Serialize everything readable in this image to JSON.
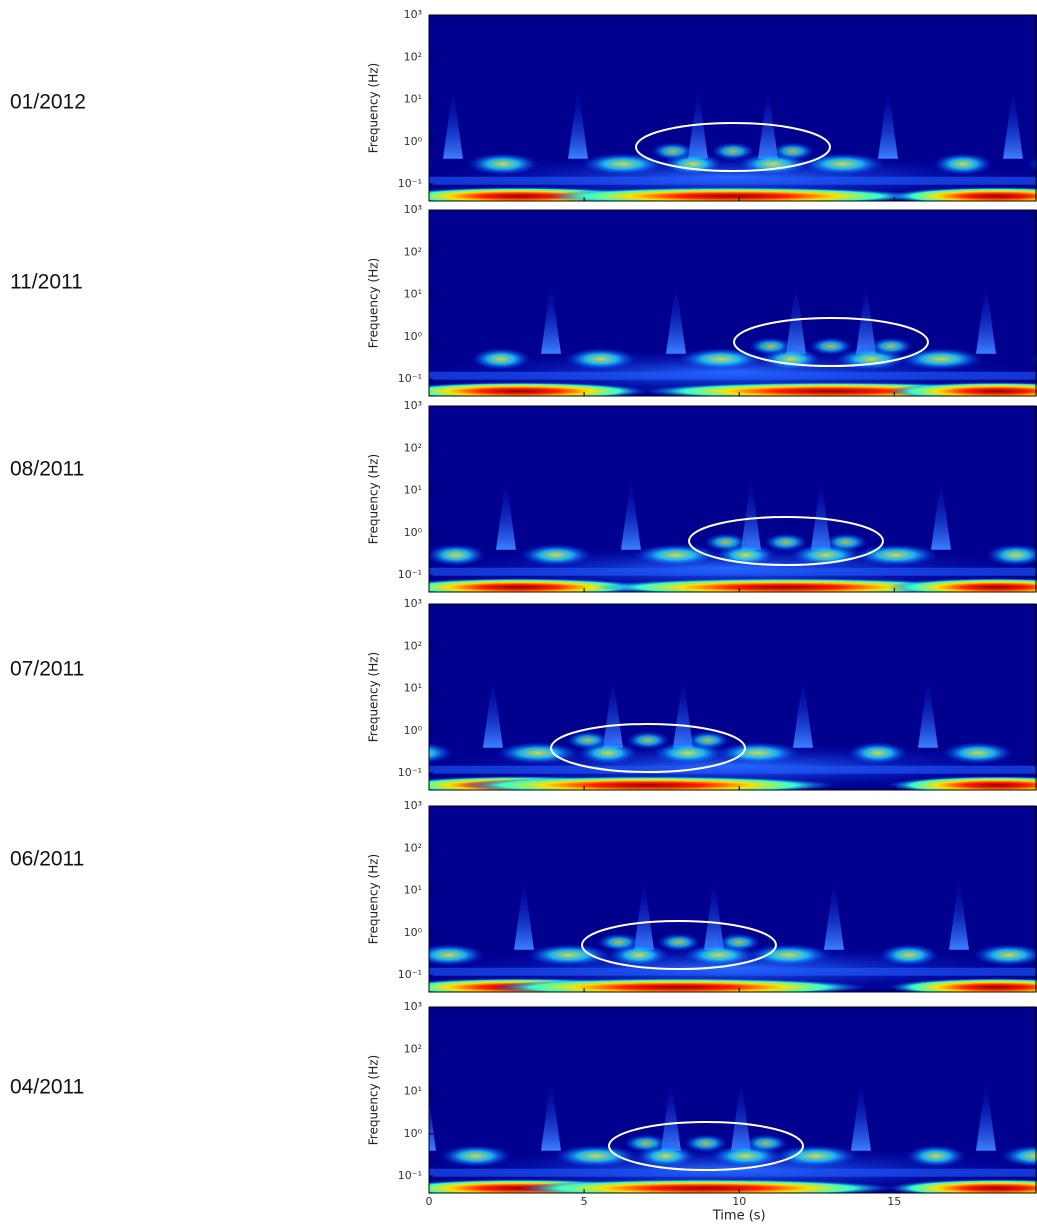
{
  "chart_data": [
    {
      "type": "spectrogram",
      "label": "01/2012",
      "ylabel": "Frequency (Hz)",
      "log_y": true,
      "ylim": [
        0.04,
        1000
      ],
      "yticks": [
        {
          "value": 1000,
          "label": "10³"
        },
        {
          "value": 100,
          "label": "10²"
        },
        {
          "value": 10,
          "label": "10¹"
        },
        {
          "value": 1,
          "label": "10⁰"
        },
        {
          "value": 0.1,
          "label": "10⁻¹"
        }
      ],
      "xlim": [
        0,
        19.6
      ],
      "xticks": [
        0,
        5,
        10,
        15
      ]
    },
    {
      "type": "spectrogram",
      "label": "11/2011",
      "ylabel": "Frequency (Hz)",
      "log_y": true,
      "ylim": [
        0.04,
        1000
      ],
      "yticks": [
        {
          "value": 1000,
          "label": "10³"
        },
        {
          "value": 100,
          "label": "10²"
        },
        {
          "value": 10,
          "label": "10¹"
        },
        {
          "value": 1,
          "label": "10⁰"
        },
        {
          "value": 0.1,
          "label": "10⁻¹"
        }
      ],
      "xlim": [
        0,
        19.6
      ],
      "xticks": [
        0,
        5,
        10,
        15
      ]
    },
    {
      "type": "spectrogram",
      "label": "08/2011",
      "ylabel": "Frequency (Hz)",
      "log_y": true,
      "ylim": [
        0.04,
        1000
      ],
      "yticks": [
        {
          "value": 1000,
          "label": "10³"
        },
        {
          "value": 100,
          "label": "10²"
        },
        {
          "value": 10,
          "label": "10¹"
        },
        {
          "value": 1,
          "label": "10⁰"
        },
        {
          "value": 0.1,
          "label": "10⁻¹"
        }
      ],
      "xlim": [
        0,
        19.6
      ],
      "xticks": [
        0,
        5,
        10,
        15
      ]
    },
    {
      "type": "spectrogram",
      "label": "07/2011",
      "ylabel": "Frequency (Hz)",
      "log_y": true,
      "ylim": [
        0.04,
        1000
      ],
      "yticks": [
        {
          "value": 1000,
          "label": "10³"
        },
        {
          "value": 100,
          "label": "10²"
        },
        {
          "value": 10,
          "label": "10¹"
        },
        {
          "value": 1,
          "label": "10⁰"
        },
        {
          "value": 0.1,
          "label": "10⁻¹"
        }
      ],
      "xlim": [
        0,
        19.6
      ],
      "xticks": [
        0,
        5,
        10,
        15
      ]
    },
    {
      "type": "spectrogram",
      "label": "06/2011",
      "ylabel": "Frequency (Hz)",
      "log_y": true,
      "ylim": [
        0.04,
        1000
      ],
      "yticks": [
        {
          "value": 1000,
          "label": "10³"
        },
        {
          "value": 100,
          "label": "10²"
        },
        {
          "value": 10,
          "label": "10¹"
        },
        {
          "value": 1,
          "label": "10⁰"
        },
        {
          "value": 0.1,
          "label": "10⁻¹"
        }
      ],
      "xlim": [
        0,
        19.6
      ],
      "xticks": [
        0,
        5,
        10,
        15
      ]
    },
    {
      "type": "spectrogram",
      "label": "04/2011",
      "ylabel": "Frequency (Hz)",
      "log_y": true,
      "ylim": [
        0.04,
        1000
      ],
      "yticks": [
        {
          "value": 1000,
          "label": "10³"
        },
        {
          "value": 100,
          "label": "10²"
        },
        {
          "value": 10,
          "label": "10¹"
        },
        {
          "value": 1,
          "label": "10⁰"
        },
        {
          "value": 0.1,
          "label": "10⁻¹"
        }
      ],
      "xlim": [
        0,
        19.6
      ],
      "xticks": [
        0,
        5,
        10,
        15
      ],
      "xlabel": "Time (s)",
      "show_xtick_labels": true
    }
  ]
}
